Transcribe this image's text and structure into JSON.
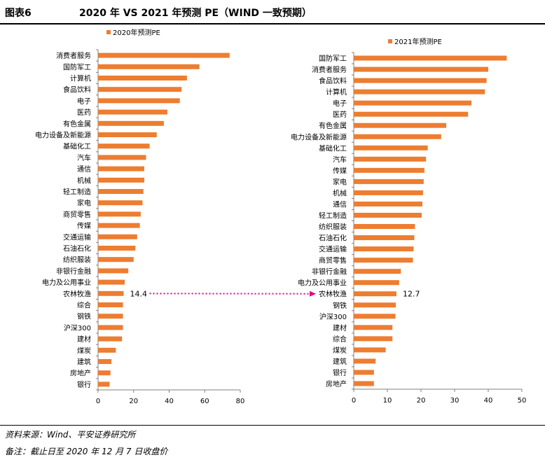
{
  "header": {
    "figure_no": "图表6",
    "title": "2020 年 VS 2021 年预测 PE（WIND 一致预期）"
  },
  "footer": {
    "source": "资料来源：Wind、平安证券研究所",
    "note": "备注：截止日至 2020 年 12 月 7 日收盘价"
  },
  "colors": {
    "bar": "#ED7D31",
    "arrow": "#E6007E",
    "axis": "#7f7f7f"
  },
  "chart_data": [
    {
      "type": "bar",
      "orientation": "horizontal",
      "legend": "2020年预测PE",
      "legend_position": "top-left",
      "xlim": [
        0,
        80
      ],
      "ticks": [
        0,
        20,
        40,
        60,
        80
      ],
      "categories": [
        "消费者服务",
        "国防军工",
        "计算机",
        "食品饮料",
        "电子",
        "医药",
        "有色金属",
        "电力设备及新能源",
        "基础化工",
        "汽车",
        "通信",
        "机械",
        "轻工制造",
        "家电",
        "商贸零售",
        "传媒",
        "交通运输",
        "石油石化",
        "纺织服装",
        "非银行金融",
        "电力及公用事业",
        "农林牧渔",
        "综合",
        "钢铁",
        "沪深300",
        "建材",
        "煤炭",
        "建筑",
        "房地产",
        "银行"
      ],
      "values": [
        74,
        57,
        50,
        47,
        46,
        39,
        37,
        33,
        29,
        27,
        26,
        26,
        25.5,
        25,
        24,
        23.5,
        22,
        21,
        20,
        17,
        15,
        14.4,
        14,
        14,
        14,
        13.5,
        10,
        7.5,
        7,
        6.5
      ],
      "annotation": {
        "category": "农林牧渔",
        "label": "14.4"
      }
    },
    {
      "type": "bar",
      "orientation": "horizontal",
      "legend": "2021年预测PE",
      "legend_position": "top-center",
      "xlim": [
        0,
        50
      ],
      "ticks": [
        0,
        10,
        20,
        30,
        40,
        50
      ],
      "categories": [
        "国防军工",
        "消费者服务",
        "食品饮料",
        "计算机",
        "电子",
        "医药",
        "有色金属",
        "电力设备及新能源",
        "基础化工",
        "汽车",
        "传媒",
        "家电",
        "机械",
        "通信",
        "轻工制造",
        "纺织服装",
        "石油石化",
        "交通运输",
        "商贸零售",
        "非银行金融",
        "电力及公用事业",
        "农林牧渔",
        "钢铁",
        "沪深300",
        "建材",
        "综合",
        "煤炭",
        "建筑",
        "银行",
        "房地产"
      ],
      "values": [
        45.5,
        40,
        39.5,
        39,
        35,
        34,
        27.5,
        26,
        22,
        21.5,
        21,
        20.8,
        20.6,
        20.4,
        20.2,
        18.2,
        18,
        17.8,
        17.6,
        14,
        13.5,
        12.7,
        12.5,
        12.4,
        11.5,
        11.5,
        9.5,
        6.5,
        6,
        6
      ],
      "annotation": {
        "category": "农林牧渔",
        "label": "12.7"
      }
    }
  ]
}
